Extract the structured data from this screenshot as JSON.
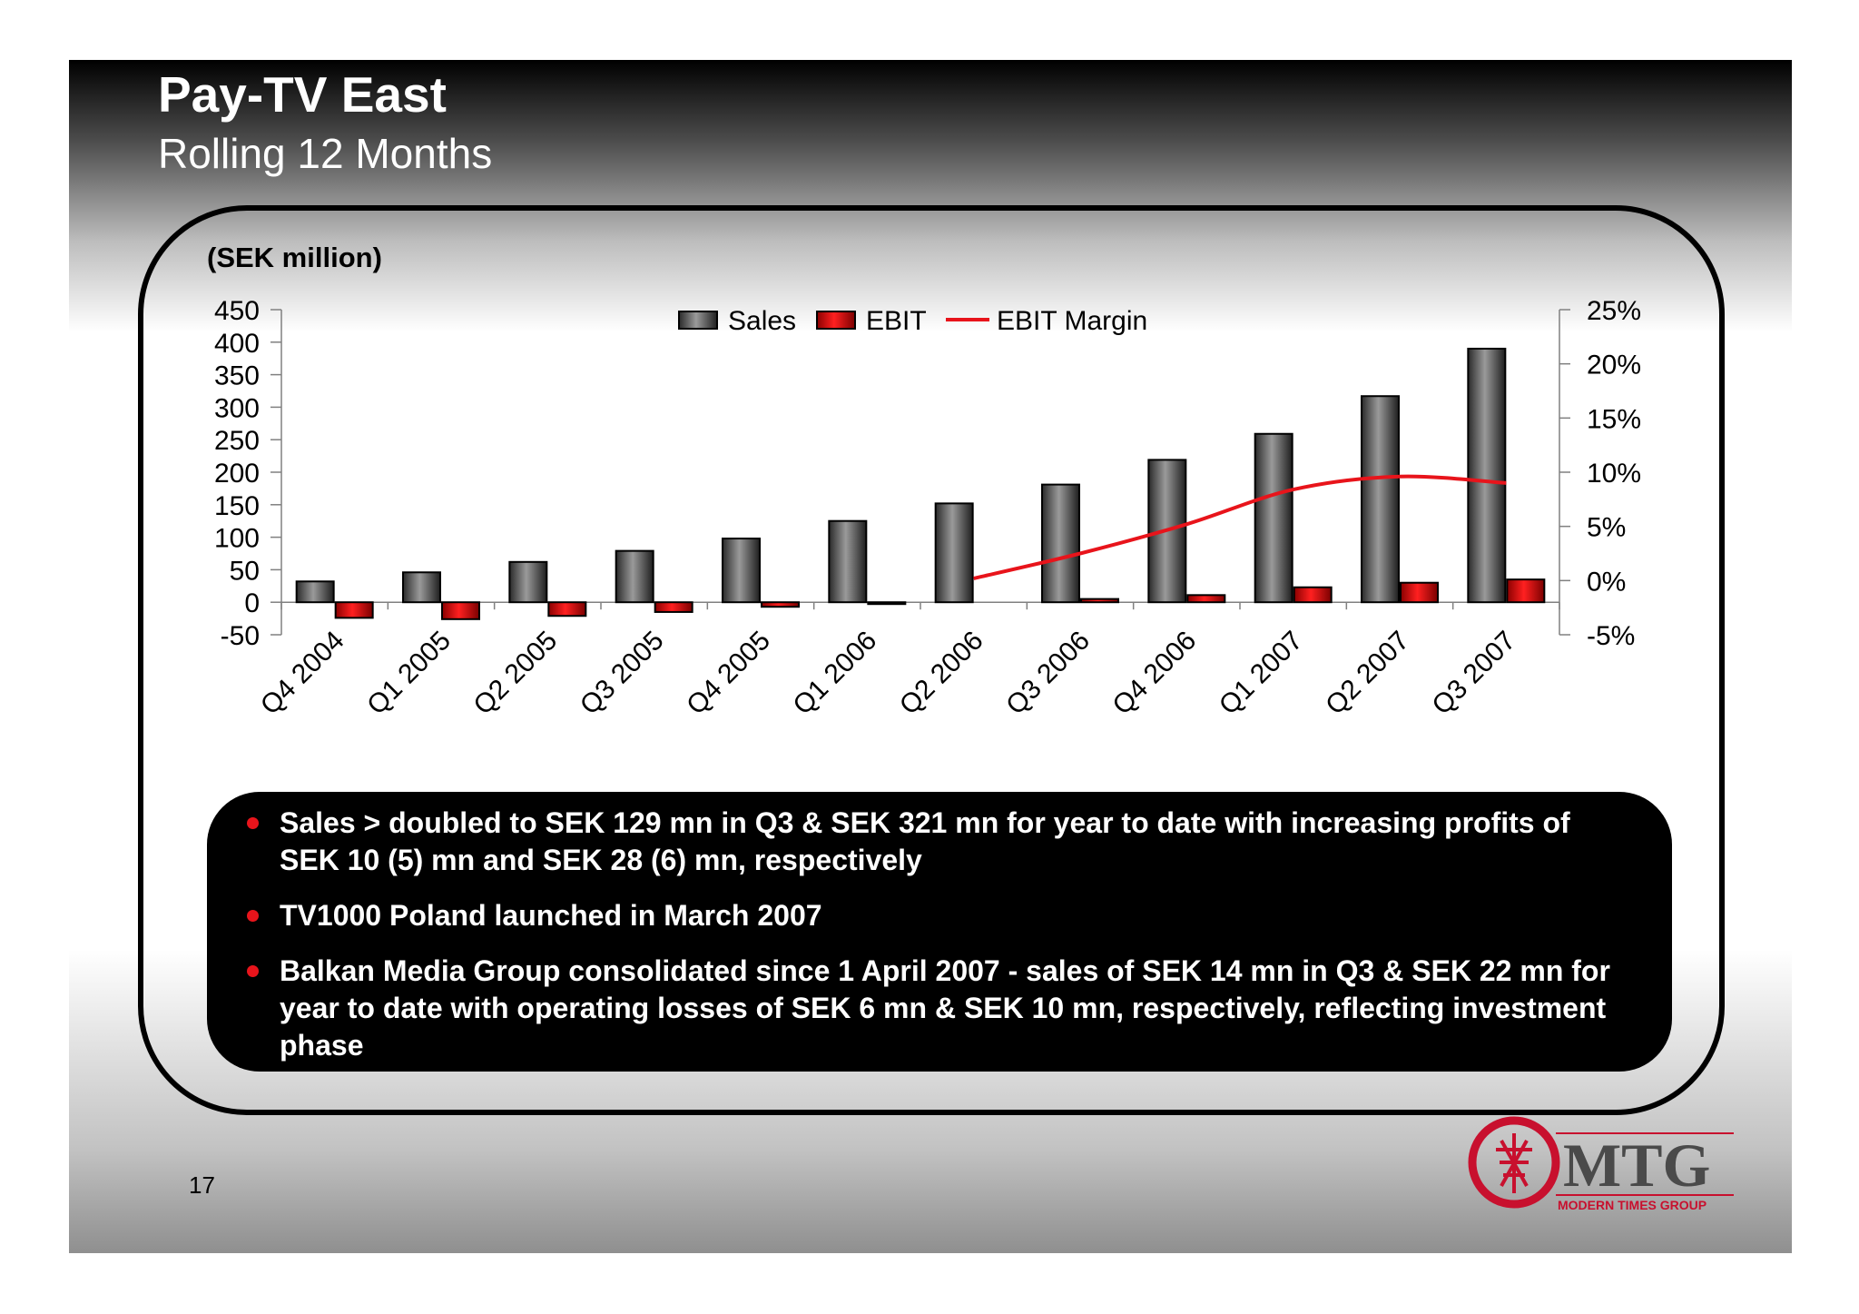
{
  "slide": {
    "title": "Pay-TV East",
    "subtitle": "Rolling 12 Months",
    "unit_label": "(SEK million)",
    "page_number": "17"
  },
  "chart_data": {
    "type": "bar",
    "categories": [
      "Q4 2004",
      "Q1 2005",
      "Q2 2005",
      "Q3 2005",
      "Q4 2005",
      "Q1 2006",
      "Q2 2006",
      "Q3 2006",
      "Q4 2006",
      "Q1 2007",
      "Q2 2007",
      "Q3 2007"
    ],
    "series": [
      {
        "name": "Sales",
        "type": "bar",
        "axis": "left",
        "color": "#5a5a5a",
        "values": [
          32,
          46,
          62,
          79,
          98,
          125,
          152,
          181,
          219,
          259,
          317,
          390
        ]
      },
      {
        "name": "EBIT",
        "type": "bar",
        "axis": "left",
        "color": "#e8141b",
        "values": [
          -24,
          -26,
          -21,
          -15,
          -7,
          -2,
          null,
          5,
          11,
          23,
          30,
          35
        ]
      },
      {
        "name": "EBIT Margin",
        "type": "line",
        "axis": "right",
        "color": "#e8141b",
        "values": [
          null,
          null,
          null,
          null,
          null,
          null,
          0.2,
          2.5,
          5.2,
          8.4,
          9.6,
          9.0
        ]
      }
    ],
    "y_left": {
      "min": -50,
      "max": 450,
      "ticks": [
        "450",
        "400",
        "350",
        "300",
        "250",
        "200",
        "150",
        "100",
        "50",
        "0",
        "-50"
      ]
    },
    "y_right": {
      "min": -5,
      "max": 25,
      "ticks": [
        "25%",
        "20%",
        "15%",
        "10%",
        "5%",
        "0%",
        "-5%"
      ]
    },
    "legend_position": "top-center",
    "grid": false
  },
  "notes": [
    "Sales > doubled to SEK 129 mn in Q3 & SEK 321 mn for year to date with increasing profits of SEK 10 (5) mn and SEK 28 (6) mn, respectively",
    "TV1000 Poland launched in March 2007",
    "Balkan Media Group consolidated since 1 April 2007 - sales of SEK 14 mn in Q3 & SEK 22 mn for year to date with operating losses of SEK 6 mn & SEK 10 mn, respectively, reflecting investment phase"
  ],
  "logo": {
    "wordmark": "MTG",
    "tagline": "MODERN TIMES GROUP",
    "color": "#c8102e"
  }
}
